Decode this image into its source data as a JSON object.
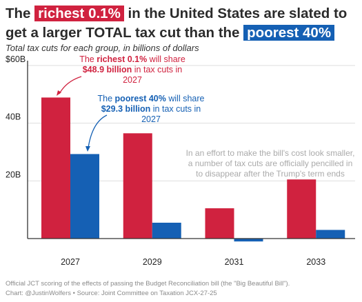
{
  "title": {
    "pre": "The ",
    "highlight1": "richest 0.1%",
    "mid": " in the United States are slated to get a larger TOTAL tax cut than the ",
    "highlight2": "poorest 40%"
  },
  "subtitle": "Total tax cuts for each group, in billions of dollars",
  "colors": {
    "richest": "#d0223f",
    "poorest": "#1560b4",
    "note": "#aaaaaa",
    "axis": "#333333",
    "grid": "#dddddd"
  },
  "chart_data": {
    "type": "bar",
    "categories": [
      "2027",
      "2029",
      "2031",
      "2033"
    ],
    "series": [
      {
        "key": "richest",
        "values": [
          48.9,
          36.5,
          10.5,
          20.5
        ]
      },
      {
        "key": "poorest",
        "values": [
          29.3,
          5.5,
          -1.0,
          3.0
        ]
      }
    ],
    "ylim": [
      -2,
      60
    ],
    "y_ticks": [
      {
        "value": 60,
        "label": "$60B"
      },
      {
        "value": 40,
        "label": "40B"
      },
      {
        "value": 20,
        "label": "20B"
      }
    ],
    "annotations": {
      "richest": {
        "line1_pre": "The ",
        "line1_bold": "richest 0.1%",
        "line1_post": " will share",
        "line2_bold": "$48.9 billion",
        "line2_post": " in tax cuts in",
        "line3": "2027"
      },
      "poorest": {
        "line1_pre": "The ",
        "line1_bold": "poorest 40%",
        "line1_post": " will share",
        "line2_bold": "$29.3 billion",
        "line2_post": " in tax cuts in",
        "line3": "2027"
      },
      "note": [
        "In an effort to make the bill's cost look smaller,",
        "a number of tax cuts are officially pencilled in",
        "to disappear after the Trump's term ends"
      ]
    }
  },
  "footer": {
    "line1": "Official JCT scoring of the effects of passing the Budget Reconciliation bill (the \"Big Beautiful Bill\").",
    "line2": "Chart: @JustinWolfers • Source: Joint Committee on Taxation JCX-27-25"
  }
}
